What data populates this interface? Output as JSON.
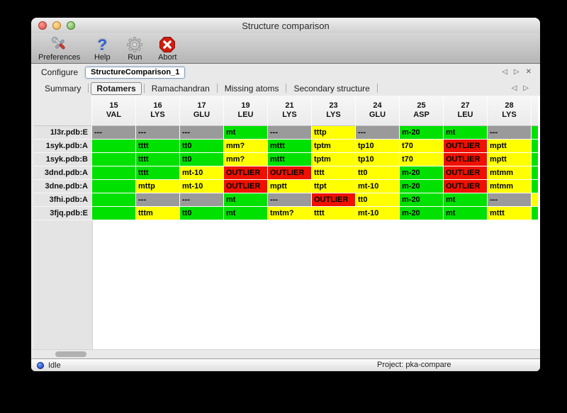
{
  "window": {
    "title": "Structure comparison"
  },
  "toolbar": {
    "items": [
      {
        "label": "Preferences",
        "icon": "preferences-tools-icon"
      },
      {
        "label": "Help",
        "icon": "help-question-icon"
      },
      {
        "label": "Run",
        "icon": "run-gear-icon"
      },
      {
        "label": "Abort",
        "icon": "abort-stop-icon"
      }
    ]
  },
  "configure": {
    "label": "Configure",
    "value": "StructureComparison_1",
    "nav": {
      "prev": "◁",
      "next": "▷",
      "close": "✕"
    }
  },
  "tabs": {
    "items": [
      "Summary",
      "Rotamers",
      "Ramachandran",
      "Missing atoms",
      "Secondary structure"
    ],
    "selected": "Rotamers",
    "nav": {
      "prev": "◁",
      "next": "▷"
    }
  },
  "legend_colors": {
    "ok": "#00e100",
    "warn": "#ffff00",
    "outlier": "#ee1100",
    "na": "#9a9a9a"
  },
  "table": {
    "columns": [
      {
        "num": "15",
        "res": "VAL"
      },
      {
        "num": "16",
        "res": "LYS"
      },
      {
        "num": "17",
        "res": "GLU"
      },
      {
        "num": "19",
        "res": "LEU"
      },
      {
        "num": "21",
        "res": "LYS"
      },
      {
        "num": "23",
        "res": "LYS"
      },
      {
        "num": "24",
        "res": "GLU"
      },
      {
        "num": "25",
        "res": "ASP"
      },
      {
        "num": "27",
        "res": "LEU"
      },
      {
        "num": "28",
        "res": "LYS"
      }
    ],
    "rows": [
      {
        "label": "1l3r.pdb:E",
        "cells": [
          [
            "---",
            "na"
          ],
          [
            "---",
            "na"
          ],
          [
            "---",
            "na"
          ],
          [
            "mt",
            "ok"
          ],
          [
            "---",
            "na"
          ],
          [
            "tttp",
            "warn"
          ],
          [
            "---",
            "na"
          ],
          [
            "m-20",
            "ok"
          ],
          [
            "mt",
            "ok"
          ],
          [
            "---",
            "na"
          ]
        ],
        "edge": "ok"
      },
      {
        "label": "1syk.pdb:A",
        "cells": [
          [
            "",
            "ok"
          ],
          [
            "tttt",
            "ok"
          ],
          [
            "tt0",
            "ok"
          ],
          [
            "mm?",
            "warn"
          ],
          [
            "mttt",
            "ok"
          ],
          [
            "tptm",
            "warn"
          ],
          [
            "tp10",
            "warn"
          ],
          [
            "t70",
            "warn"
          ],
          [
            "OUTLIER",
            "outlier"
          ],
          [
            "mptt",
            "warn"
          ]
        ],
        "edge": "ok"
      },
      {
        "label": "1syk.pdb:B",
        "cells": [
          [
            "",
            "ok"
          ],
          [
            "tttt",
            "ok"
          ],
          [
            "tt0",
            "ok"
          ],
          [
            "mm?",
            "warn"
          ],
          [
            "mttt",
            "ok"
          ],
          [
            "tptm",
            "warn"
          ],
          [
            "tp10",
            "warn"
          ],
          [
            "t70",
            "warn"
          ],
          [
            "OUTLIER",
            "outlier"
          ],
          [
            "mptt",
            "warn"
          ]
        ],
        "edge": "ok"
      },
      {
        "label": "3dnd.pdb:A",
        "cells": [
          [
            "",
            "ok"
          ],
          [
            "tttt",
            "ok"
          ],
          [
            "mt-10",
            "warn"
          ],
          [
            "OUTLIER",
            "outlier"
          ],
          [
            "OUTLIER",
            "outlier"
          ],
          [
            "tttt",
            "warn"
          ],
          [
            "tt0",
            "warn"
          ],
          [
            "m-20",
            "ok"
          ],
          [
            "OUTLIER",
            "outlier"
          ],
          [
            "mtmm",
            "warn"
          ]
        ],
        "edge": "ok"
      },
      {
        "label": "3dne.pdb:A",
        "cells": [
          [
            "",
            "ok"
          ],
          [
            "mttp",
            "warn"
          ],
          [
            "mt-10",
            "warn"
          ],
          [
            "OUTLIER",
            "outlier"
          ],
          [
            "mptt",
            "warn"
          ],
          [
            "ttpt",
            "warn"
          ],
          [
            "mt-10",
            "warn"
          ],
          [
            "m-20",
            "ok"
          ],
          [
            "OUTLIER",
            "outlier"
          ],
          [
            "mtmm",
            "warn"
          ]
        ],
        "edge": "ok"
      },
      {
        "label": "3fhi.pdb:A",
        "cells": [
          [
            "",
            "ok"
          ],
          [
            "---",
            "na"
          ],
          [
            "---",
            "na"
          ],
          [
            "mt",
            "ok"
          ],
          [
            "---",
            "na"
          ],
          [
            "OUTLIER",
            "outlier"
          ],
          [
            "tt0",
            "warn"
          ],
          [
            "m-20",
            "ok"
          ],
          [
            "mt",
            "ok"
          ],
          [
            "---",
            "na"
          ]
        ],
        "edge": "warn"
      },
      {
        "label": "3fjq.pdb:E",
        "cells": [
          [
            "",
            "ok"
          ],
          [
            "tttm",
            "warn"
          ],
          [
            "tt0",
            "ok"
          ],
          [
            "mt",
            "ok"
          ],
          [
            "tmtm?",
            "warn"
          ],
          [
            "tttt",
            "warn"
          ],
          [
            "mt-10",
            "warn"
          ],
          [
            "m-20",
            "ok"
          ],
          [
            "mt",
            "ok"
          ],
          [
            "mttt",
            "warn"
          ]
        ],
        "edge": "ok"
      }
    ]
  },
  "status": {
    "state": "Idle",
    "project": "Project: pka-compare"
  }
}
